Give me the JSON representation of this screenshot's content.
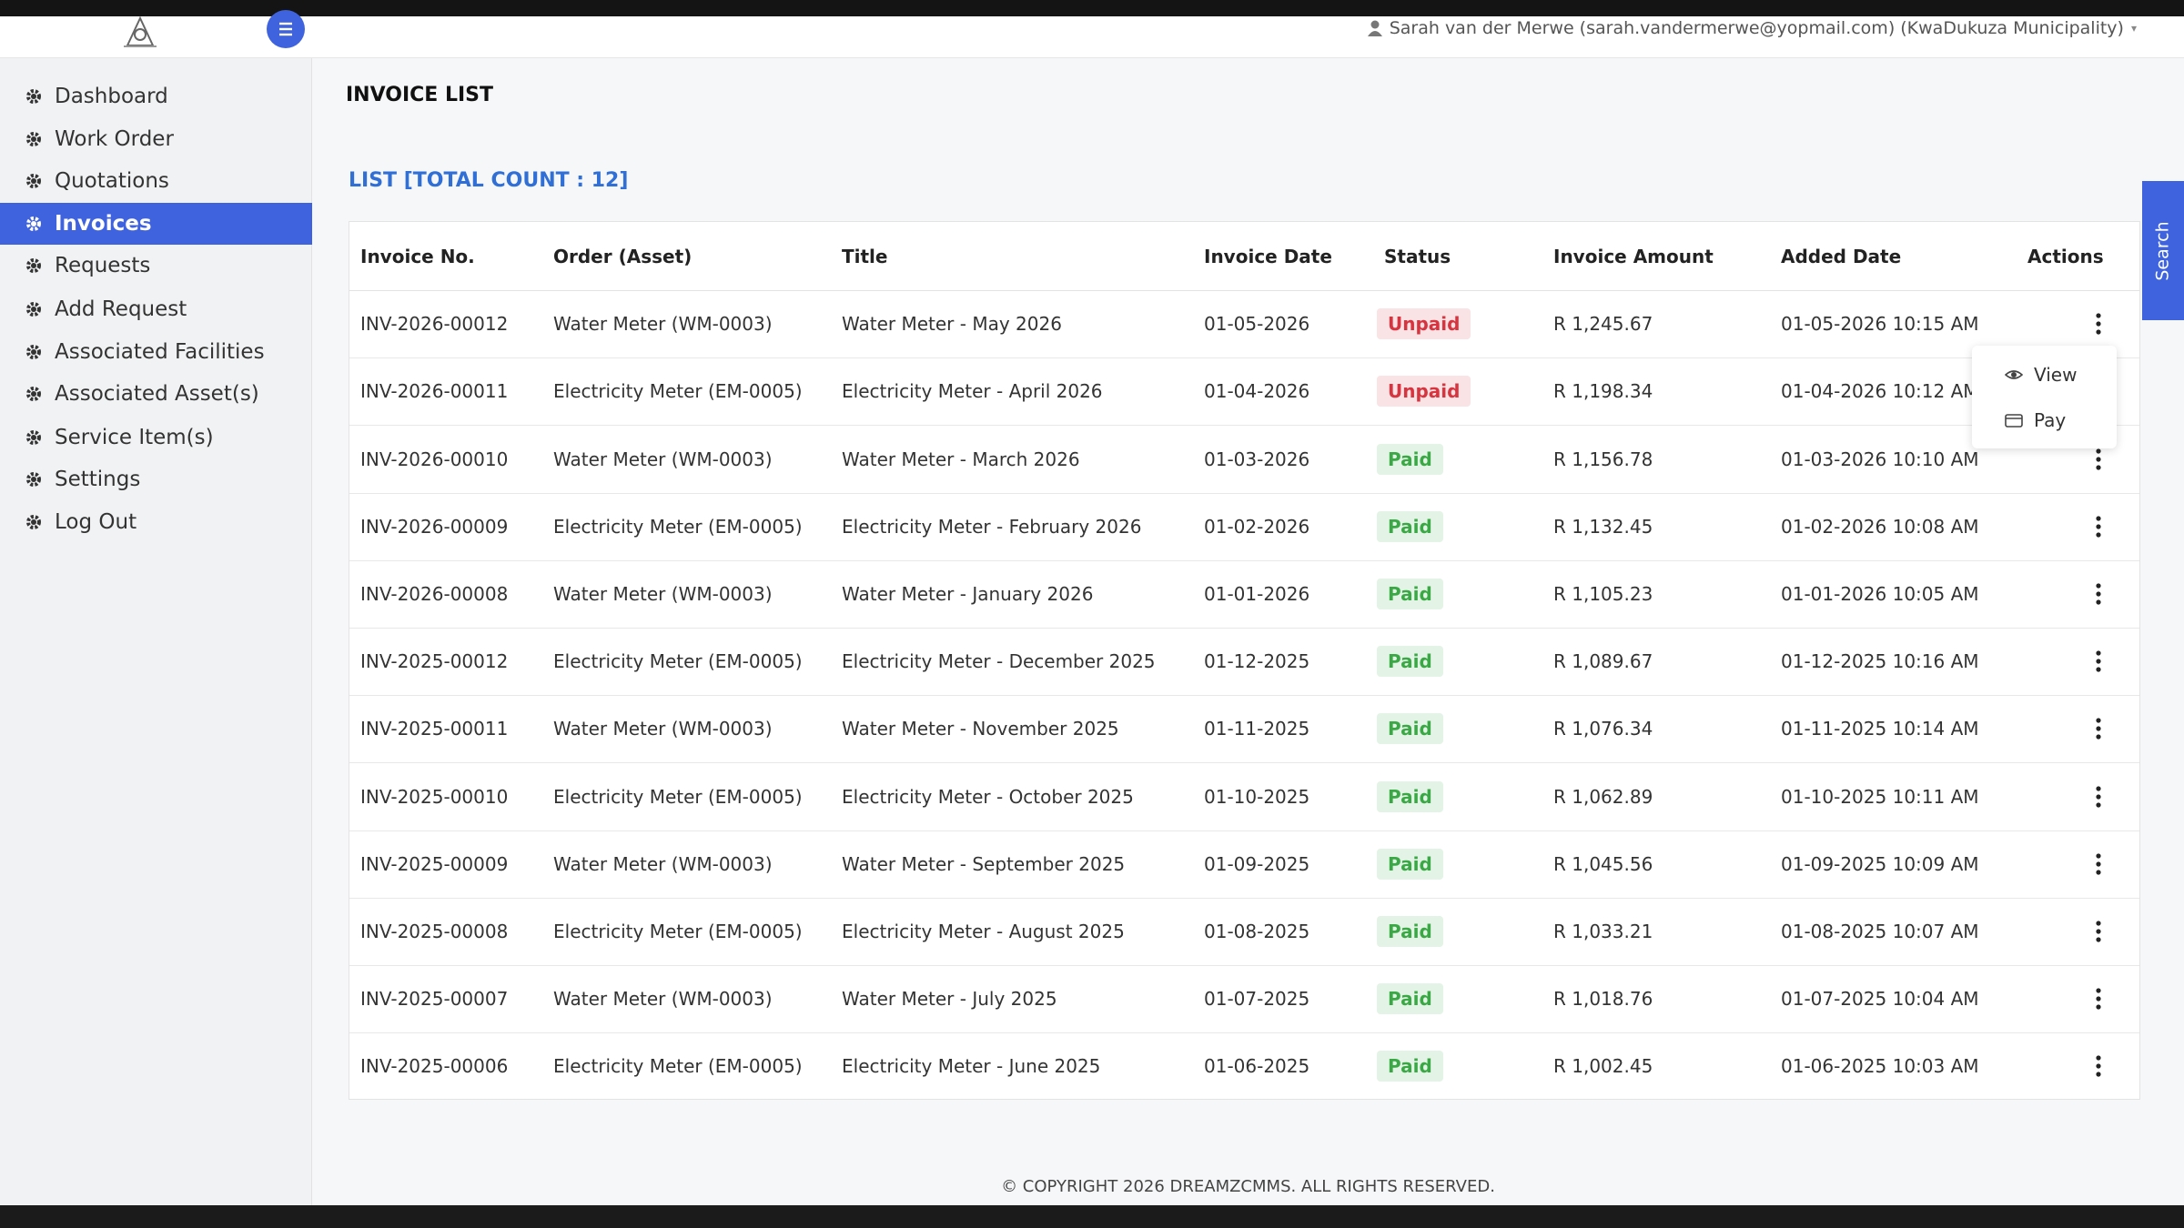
{
  "header": {
    "user": "Sarah van der Merwe (sarah.vandermerwe@yopmail.com) (KwaDukuza Municipality)"
  },
  "sidebar": {
    "items": [
      "Dashboard",
      "Work Order",
      "Quotations",
      "Invoices",
      "Requests",
      "Add Request",
      "Associated Facilities",
      "Associated Asset(s)",
      "Service Item(s)",
      "Settings",
      "Log Out"
    ],
    "active": 3
  },
  "page": {
    "title": "INVOICE LIST",
    "list_title": "LIST [TOTAL COUNT : 12]",
    "search_tab": "Search"
  },
  "table": {
    "columns": [
      "Invoice No.",
      "Order (Asset)",
      "Title",
      "Invoice Date",
      "Status",
      "Invoice Amount",
      "Added Date",
      "Actions"
    ],
    "status_colors": {
      "Unpaid": "#d7343f",
      "Paid": "#3aa845"
    },
    "rows": [
      [
        "INV-2026-00012",
        "Water Meter (WM-0003)",
        "Water Meter - May 2026",
        "01-05-2026",
        "Unpaid",
        "R 1,245.67",
        "01-05-2026 10:15 AM"
      ],
      [
        "INV-2026-00011",
        "Electricity Meter (EM-0005)",
        "Electricity Meter - April 2026",
        "01-04-2026",
        "Unpaid",
        "R 1,198.34",
        "01-04-2026 10:12 AM"
      ],
      [
        "INV-2026-00010",
        "Water Meter (WM-0003)",
        "Water Meter - March 2026",
        "01-03-2026",
        "Paid",
        "R 1,156.78",
        "01-03-2026 10:10 AM"
      ],
      [
        "INV-2026-00009",
        "Electricity Meter (EM-0005)",
        "Electricity Meter - February 2026",
        "01-02-2026",
        "Paid",
        "R 1,132.45",
        "01-02-2026 10:08 AM"
      ],
      [
        "INV-2026-00008",
        "Water Meter (WM-0003)",
        "Water Meter - January 2026",
        "01-01-2026",
        "Paid",
        "R 1,105.23",
        "01-01-2026 10:05 AM"
      ],
      [
        "INV-2025-00012",
        "Electricity Meter (EM-0005)",
        "Electricity Meter - December 2025",
        "01-12-2025",
        "Paid",
        "R 1,089.67",
        "01-12-2025 10:16 AM"
      ],
      [
        "INV-2025-00011",
        "Water Meter (WM-0003)",
        "Water Meter - November 2025",
        "01-11-2025",
        "Paid",
        "R 1,076.34",
        "01-11-2025 10:14 AM"
      ],
      [
        "INV-2025-00010",
        "Electricity Meter (EM-0005)",
        "Electricity Meter - October 2025",
        "01-10-2025",
        "Paid",
        "R 1,062.89",
        "01-10-2025 10:11 AM"
      ],
      [
        "INV-2025-00009",
        "Water Meter (WM-0003)",
        "Water Meter - September 2025",
        "01-09-2025",
        "Paid",
        "R 1,045.56",
        "01-09-2025 10:09 AM"
      ],
      [
        "INV-2025-00008",
        "Electricity Meter (EM-0005)",
        "Electricity Meter - August 2025",
        "01-08-2025",
        "Paid",
        "R 1,033.21",
        "01-08-2025 10:07 AM"
      ],
      [
        "INV-2025-00007",
        "Water Meter (WM-0003)",
        "Water Meter - July 2025",
        "01-07-2025",
        "Paid",
        "R 1,018.76",
        "01-07-2025 10:04 AM"
      ],
      [
        "INV-2025-00006",
        "Electricity Meter (EM-0005)",
        "Electricity Meter - June 2025",
        "01-06-2025",
        "Paid",
        "R 1,002.45",
        "01-06-2025 10:03 AM"
      ]
    ]
  },
  "actions_menu": {
    "items": [
      "View",
      "Pay"
    ]
  },
  "footer": {
    "text": "© COPYRIGHT 2026 DREAMZCMMS. ALL RIGHTS RESERVED."
  }
}
